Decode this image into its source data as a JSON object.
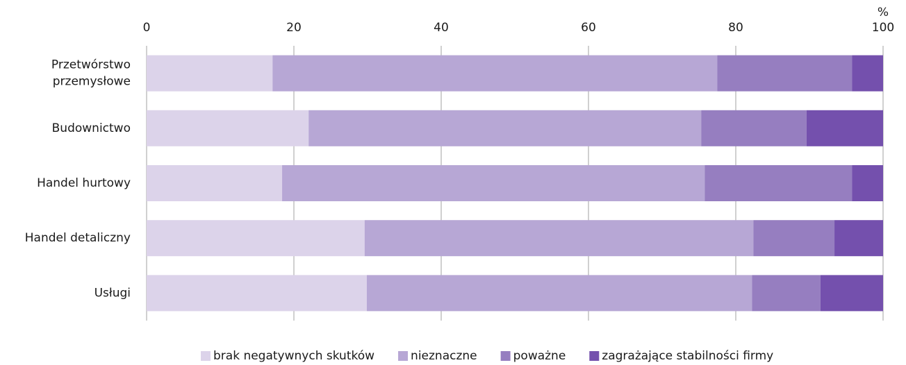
{
  "chart_data": {
    "type": "stacked_barh",
    "x_unit": "%",
    "categories": [
      "Przetwórstwo przemysłowe",
      "Budownictwo",
      "Handel hurtowy",
      "Handel detaliczny",
      "Usługi"
    ],
    "series": [
      {
        "name": "brak negatywnych skutków",
        "color": "#dcd3ea",
        "values": [
          17.1,
          22.0,
          18.4,
          29.6,
          29.9
        ]
      },
      {
        "name": "nieznaczne",
        "color": "#b7a7d5",
        "values": [
          60.4,
          53.3,
          57.4,
          52.8,
          52.3
        ]
      },
      {
        "name": "poważne",
        "color": "#967ec0",
        "values": [
          18.3,
          14.3,
          20.0,
          11.0,
          9.3
        ]
      },
      {
        "name": "zagrażające stabilności firmy",
        "color": "#7450ad",
        "values": [
          4.2,
          10.4,
          4.2,
          6.6,
          8.5
        ]
      }
    ],
    "xlim": [
      0,
      100
    ],
    "xticks": [
      0,
      20,
      40,
      60,
      80,
      100
    ],
    "grid": true
  }
}
